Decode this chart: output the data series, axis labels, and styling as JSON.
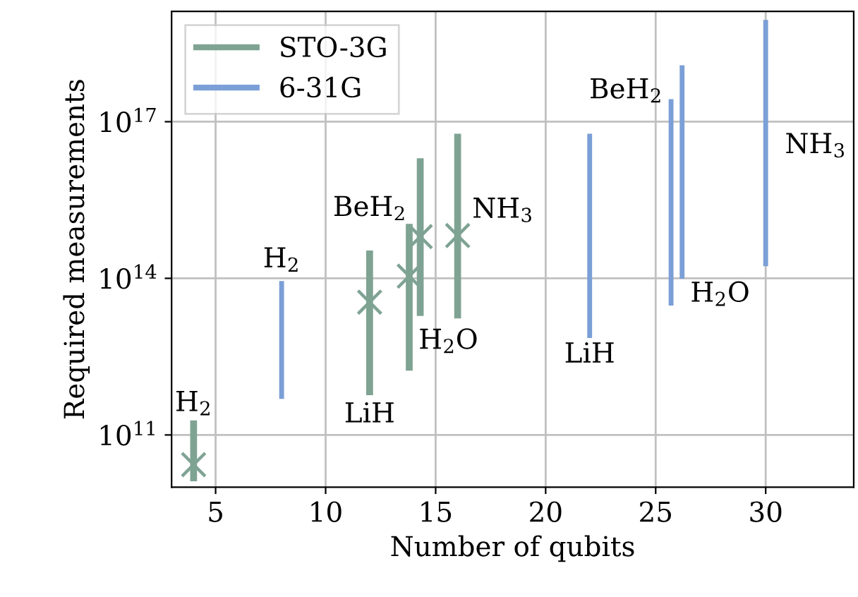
{
  "chart_data": {
    "type": "scatter",
    "xlabel": "Number of qubits",
    "ylabel": "Required measurements",
    "log": "y",
    "grid": true,
    "legend": "top left",
    "xlim": [
      3,
      34
    ],
    "xticks": [
      5,
      10,
      15,
      20,
      25,
      30
    ],
    "ylim": [
      10000000000.0,
      1.3e+19
    ],
    "yticks": [
      {
        "value": 100000000000.0,
        "label": "10$^{11}$"
      },
      {
        "value": 100000000000000.0,
        "label": "10$^{14}$"
      },
      {
        "value": 1e+17,
        "label": "10$^{17}$"
      }
    ],
    "series": [
      {
        "name": "STO-3G",
        "marker": "cross",
        "color": "#7fa393",
        "x": [
          4,
          12,
          13.8,
          14.3,
          16
        ],
        "values": [
          27000000000.0,
          35000000000000.0,
          110000000000000.0,
          630000000000000.0,
          660000000000000.0
        ],
        "errors": [
          [
            13000000000.0,
            190000000000.0
          ],
          [
            580000000000.0,
            340000000000000.0
          ],
          [
            1700000000000.0,
            1100000000000000.0
          ],
          [
            19000000000000.0,
            2e+16
          ],
          [
            17000000000000.0,
            5.9e+16
          ]
        ]
      },
      {
        "name": "6-31G",
        "type": "bar",
        "color": "#7b9fd6",
        "x": [
          8,
          22,
          25.7,
          26.2,
          30
        ],
        "base": [
          490000000000.0,
          7200000000000.0,
          30000000000000.0,
          98000000000000.0,
          170000000000000.0
        ],
        "values": [
          88500000000000.0,
          5.9e+16,
          2.7e+17,
          1.2e+18,
          8.9e+18
        ]
      }
    ],
    "annotations": [
      {
        "text": "H$_{2}$",
        "x": 4,
        "y": 190000000000.0
      },
      {
        "text": "H$_{2}$",
        "x": 8,
        "y": 89000000000000.0
      },
      {
        "text": "LiH",
        "x": 12,
        "y": 580000000000.0
      },
      {
        "text": "BeH$_{2}$",
        "x": 13.8,
        "y": 1100000000000000.0
      },
      {
        "text": "H$_{2}$O",
        "x": 14.3,
        "y": 19000000000000.0
      },
      {
        "text": "NH$_{3}$",
        "x": 16,
        "y": 660000000000000.0
      },
      {
        "text": "LiH",
        "x": 22,
        "y": 7200000000000.0
      },
      {
        "text": "BeH$_{2}$",
        "x": 25.7,
        "y": 2.7e+17
      },
      {
        "text": "H$_{2}$O",
        "x": 26.2,
        "y": 98000000000000.0
      },
      "NH$_{3}$"
    ]
  }
}
